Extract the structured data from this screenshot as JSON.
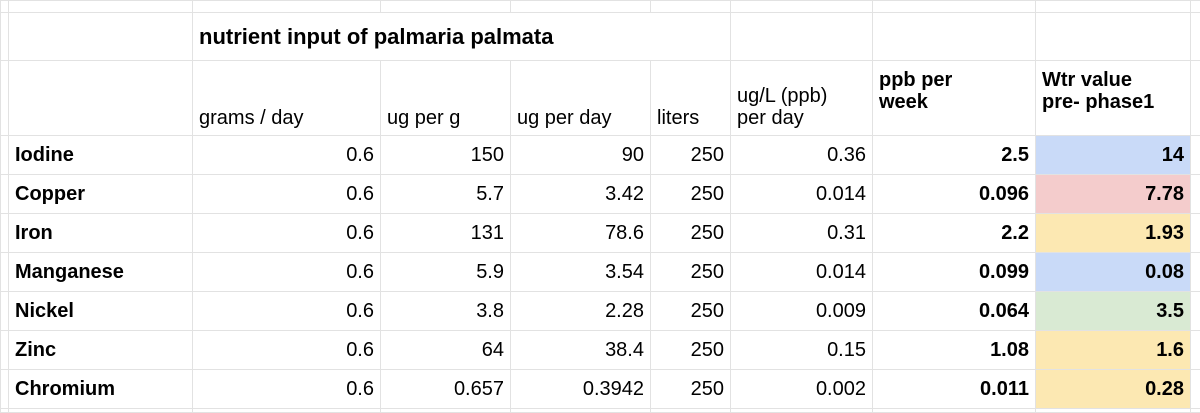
{
  "table": {
    "title": "nutrient input of palmaria palmata",
    "headers": [
      "grams / day",
      "ug per g",
      "ug per day",
      "liters",
      "ug/L (ppb)\nper day",
      "ppb per\nweek",
      "Wtr value\npre- phase1"
    ],
    "rows": [
      [
        "Iodine",
        "0.6",
        "150",
        "90",
        "250",
        "0.36",
        "2.5",
        "14"
      ],
      [
        "Copper",
        "0.6",
        "5.7",
        "3.42",
        "250",
        "0.014",
        "0.096",
        "7.78"
      ],
      [
        "Iron",
        "0.6",
        "131",
        "78.6",
        "250",
        "0.31",
        "2.2",
        "1.93"
      ],
      [
        "Manganese",
        "0.6",
        "5.9",
        "3.54",
        "250",
        "0.014",
        "0.099",
        "0.08"
      ],
      [
        "Nickel",
        "0.6",
        "3.8",
        "2.28",
        "250",
        "0.009",
        "0.064",
        "3.5"
      ],
      [
        "Zinc",
        "0.6",
        "64",
        "38.4",
        "250",
        "0.15",
        "1.08",
        "1.6"
      ],
      [
        "Chromium",
        "0.6",
        "0.657",
        "0.3942",
        "250",
        "0.002",
        "0.011",
        "0.28"
      ]
    ],
    "wtr_colors": [
      "#c9daf8",
      "#f4cccc",
      "#fce8b2",
      "#c9daf8",
      "#d9ead3",
      "#fce8b2",
      "#fce8b2"
    ]
  }
}
